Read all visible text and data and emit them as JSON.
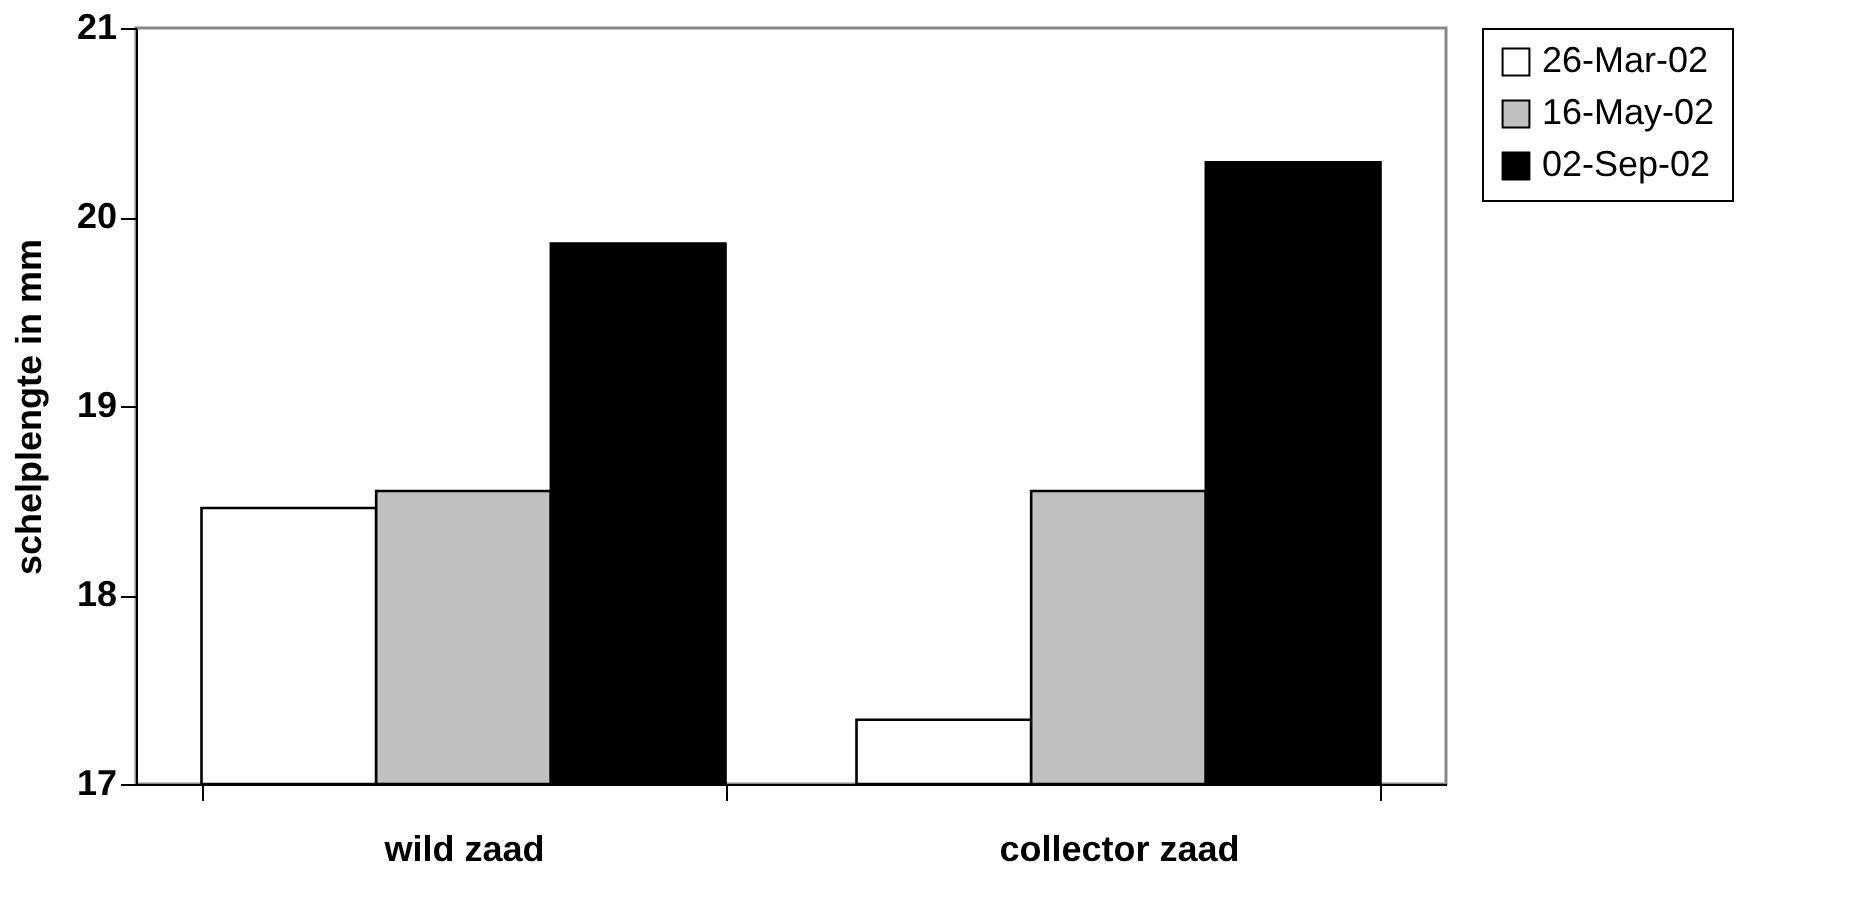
{
  "chart_data": {
    "type": "bar",
    "ylabel": "schelplengte in mm",
    "categories": [
      "wild zaad",
      "collector zaad"
    ],
    "series": [
      {
        "name": "26-Mar-02",
        "color": "#ffffff",
        "values": [
          18.46,
          17.34
        ]
      },
      {
        "name": "16-May-02",
        "color": "#c0c0c0",
        "values": [
          18.55,
          18.55
        ]
      },
      {
        "name": "02-Sep-02",
        "color": "#000000",
        "values": [
          19.86,
          20.29
        ]
      }
    ],
    "ylim": [
      17,
      21
    ],
    "yticks": [
      17,
      18,
      19,
      20,
      21
    ],
    "grid": false,
    "legend": "right"
  }
}
